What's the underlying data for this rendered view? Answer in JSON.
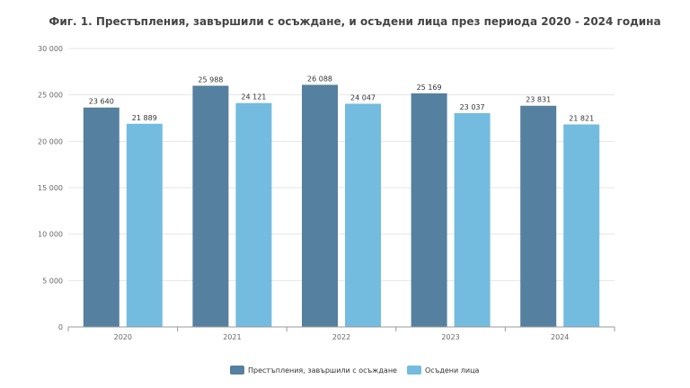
{
  "chart_data": {
    "type": "bar",
    "title": "Фиг. 1. Престъпления, завършили с осъждане, и осъдени лица през периода 2020 - 2024 година",
    "categories": [
      "2020",
      "2021",
      "2022",
      "2023",
      "2024"
    ],
    "series": [
      {
        "name": "Престъпления, завършили с осъждане",
        "color": "#55809f",
        "values": [
          23640,
          25988,
          26088,
          25169,
          23831
        ],
        "labels": [
          "23 640",
          "25 988",
          "26 088",
          "25 169",
          "23 831"
        ]
      },
      {
        "name": "Осъдени лица",
        "color": "#73bcdf",
        "values": [
          21889,
          24121,
          24047,
          23037,
          21821
        ],
        "labels": [
          "21 889",
          "24 121",
          "24 047",
          "23 037",
          "21 821"
        ]
      }
    ],
    "ylim": [
      0,
      30000
    ],
    "yticks": [
      0,
      5000,
      10000,
      15000,
      20000,
      25000,
      30000
    ],
    "ytick_labels": [
      "0",
      "5 000",
      "10 000",
      "15 000",
      "20 000",
      "25 000",
      "30 000"
    ],
    "xlabel": "",
    "ylabel": "",
    "grid": true,
    "legend_position": "bottom-center"
  }
}
